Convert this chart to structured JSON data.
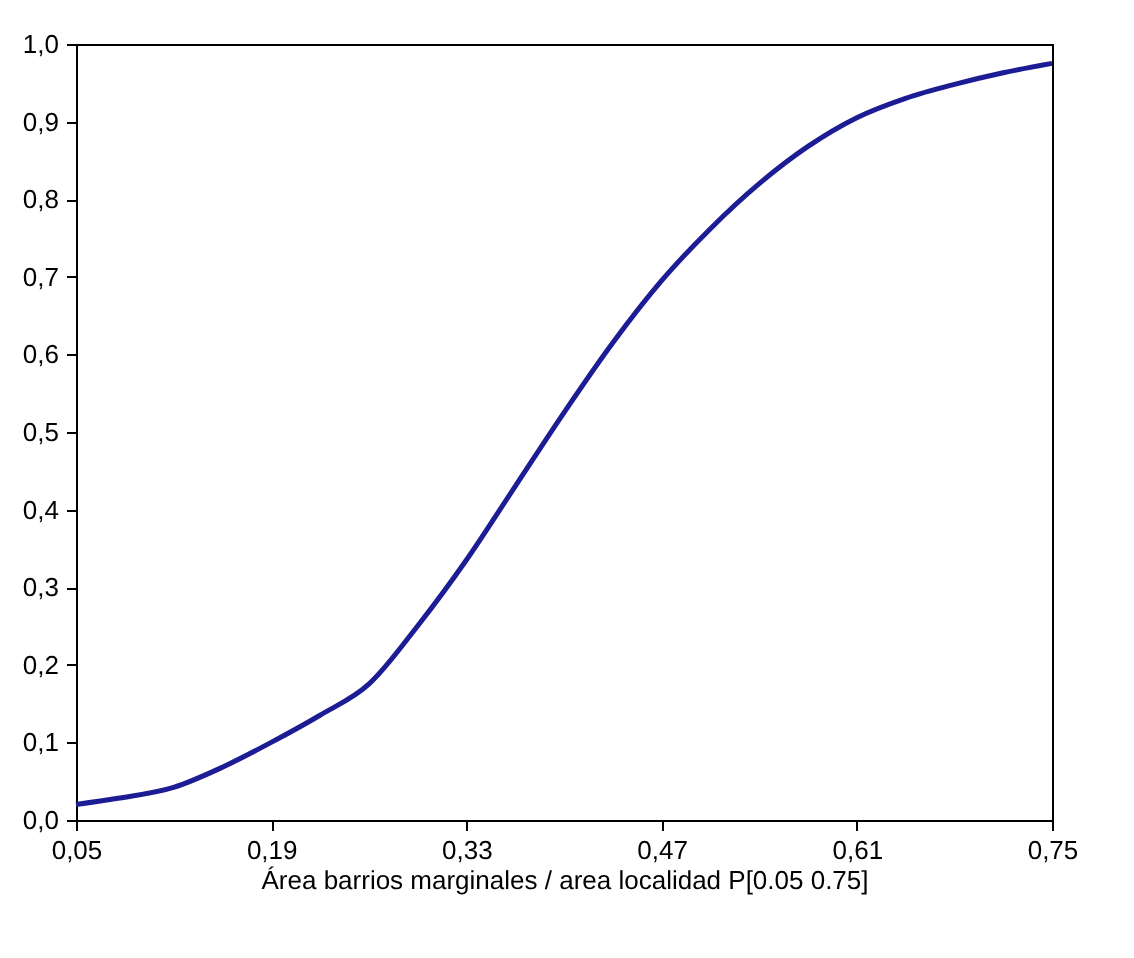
{
  "chart_data": {
    "type": "line",
    "xlabel": "Área barrios marginales / area localidad P[0.05 0.75]",
    "x": [
      0.05,
      0.08,
      0.12,
      0.155,
      0.19,
      0.225,
      0.26,
      0.295,
      0.33,
      0.365,
      0.4,
      0.435,
      0.47,
      0.505,
      0.54,
      0.575,
      0.61,
      0.645,
      0.68,
      0.715,
      0.75
    ],
    "series": [
      {
        "color": "#1c1c94",
        "values": [
          0.02,
          0.028,
          0.042,
          0.068,
          0.1,
          0.135,
          0.175,
          0.25,
          0.335,
          0.43,
          0.525,
          0.615,
          0.695,
          0.762,
          0.82,
          0.868,
          0.905,
          0.93,
          0.948,
          0.963,
          0.975
        ]
      }
    ],
    "xlim": [
      0.05,
      0.75
    ],
    "xticks": [
      {
        "value": 0.05,
        "label": "0,05"
      },
      {
        "value": 0.19,
        "label": "0,19"
      },
      {
        "value": 0.33,
        "label": "0,33"
      },
      {
        "value": 0.47,
        "label": "0,47"
      },
      {
        "value": 0.61,
        "label": "0,61"
      },
      {
        "value": 0.75,
        "label": "0,75"
      }
    ],
    "ylim": [
      0,
      1
    ],
    "yticks": [
      {
        "value": 0,
        "label": "0,0"
      },
      {
        "value": 0.1,
        "label": "0,1"
      },
      {
        "value": 0.2,
        "label": "0,2"
      },
      {
        "value": 0.3,
        "label": "0,3"
      },
      {
        "value": 0.4,
        "label": "0,4"
      },
      {
        "value": 0.5,
        "label": "0,5"
      },
      {
        "value": 0.6,
        "label": "0,6"
      },
      {
        "value": 0.7,
        "label": "0,7"
      },
      {
        "value": 0.8,
        "label": "0,8"
      },
      {
        "value": 0.9,
        "label": "0,9"
      },
      {
        "value": 1.0,
        "label": "1,0"
      }
    ],
    "grid": false,
    "marker": "none",
    "line_style": "solid"
  }
}
